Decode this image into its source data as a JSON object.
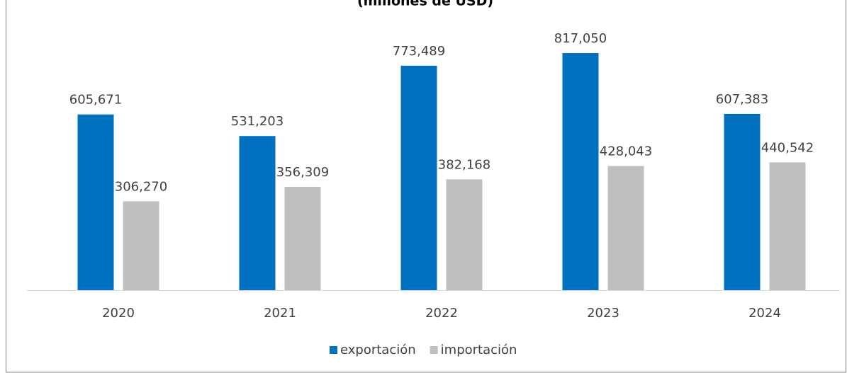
{
  "chart_data": {
    "type": "bar",
    "title": "(millones de USD)",
    "categories": [
      "2020",
      "2021",
      "2022",
      "2023",
      "2024"
    ],
    "series": [
      {
        "name": "exportación",
        "color": "#0070c0",
        "values": [
          605671,
          531203,
          773489,
          817050,
          607383
        ],
        "value_labels": [
          "605,671",
          "531,203",
          "773,489",
          "817,050",
          "607,383"
        ]
      },
      {
        "name": "importación",
        "color": "#bfbfbf",
        "values": [
          306270,
          356309,
          382168,
          428043,
          440542
        ],
        "value_labels": [
          "306,270",
          "356,309",
          "382,168",
          "428,043",
          "440,542"
        ]
      }
    ],
    "legend": "bottom"
  }
}
